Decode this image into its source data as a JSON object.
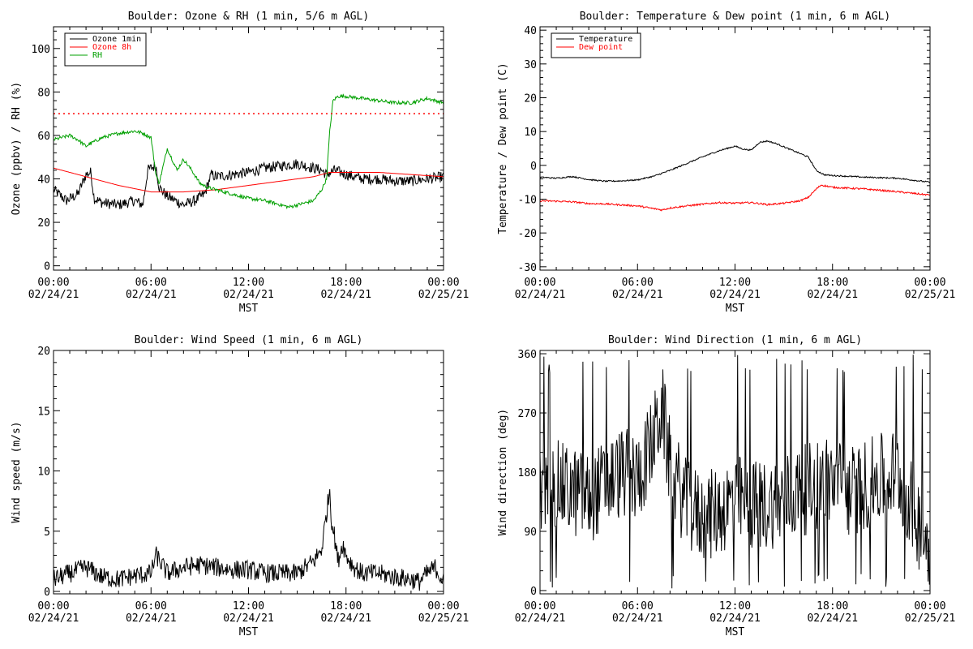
{
  "chart_data": [
    {
      "type": "line",
      "title": "Boulder: Ozone & RH (1 min, 5/6 m AGL)",
      "xlabel": "MST",
      "ylabel": "Ozone (ppbv) / RH (%)",
      "x_tick_labels": [
        [
          "00:00",
          "02/24/21"
        ],
        [
          "06:00",
          "02/24/21"
        ],
        [
          "12:00",
          "02/24/21"
        ],
        [
          "18:00",
          "02/24/21"
        ],
        [
          "00:00",
          "02/25/21"
        ]
      ],
      "xlim_hours": [
        0,
        24
      ],
      "ylim": [
        -2,
        110
      ],
      "yticks": [
        0,
        20,
        40,
        60,
        80,
        100
      ],
      "reference_line": {
        "y": 70,
        "style": "dotted",
        "color": "#ff0000"
      },
      "legend": {
        "placement": "top-left",
        "entries": [
          "Ozone 1min",
          "Ozone 8h",
          "RH"
        ]
      },
      "series": [
        {
          "name": "Ozone 1min",
          "color": "#000000",
          "noise": 2.5,
          "x": [
            0,
            0.8,
            1.5,
            2.0,
            2.3,
            2.5,
            3.0,
            4.0,
            5.0,
            5.5,
            5.8,
            6.0,
            6.3,
            6.5,
            7.0,
            8.0,
            8.7,
            9.3,
            9.7,
            10.0,
            11.0,
            12.0,
            13.0,
            14.0,
            15.0,
            15.5,
            16.0,
            16.5,
            16.8,
            17.3,
            18.0,
            19.0,
            20.0,
            21.0,
            22.0,
            23.0,
            24.0
          ],
          "y": [
            35,
            30,
            33,
            42,
            43,
            31,
            29,
            28,
            30,
            28,
            44,
            45,
            46,
            36,
            32,
            28,
            30,
            33,
            42,
            41,
            42,
            43,
            45,
            46,
            47,
            46,
            45,
            44,
            42,
            44,
            42,
            40,
            40,
            39,
            39,
            40,
            41
          ]
        },
        {
          "name": "Ozone 8h",
          "color": "#ff0000",
          "noise": 0,
          "x": [
            0,
            2,
            4,
            6,
            8,
            10,
            12,
            14,
            16,
            17,
            18,
            20,
            22,
            24
          ],
          "y": [
            45,
            41,
            37,
            34,
            34,
            35,
            37,
            39,
            41,
            43,
            43,
            43,
            42,
            41
          ]
        },
        {
          "name": "RH",
          "color": "#00a000",
          "noise": 0.8,
          "x": [
            0,
            0.5,
            1.0,
            1.5,
            2.0,
            2.2,
            3.0,
            4.0,
            5.0,
            5.5,
            6.0,
            6.3,
            6.5,
            7.0,
            7.3,
            7.6,
            8.0,
            8.5,
            9.0,
            9.5,
            10.0,
            11.0,
            12.0,
            13.0,
            14.0,
            14.5,
            15.0,
            16.0,
            16.5,
            16.8,
            17.0,
            17.2,
            17.5,
            18.0,
            19.0,
            20.0,
            21.0,
            22.0,
            22.5,
            23.0,
            24.0
          ],
          "y": [
            58,
            59,
            60,
            58,
            55,
            56,
            59,
            61,
            62,
            61,
            59,
            42,
            38,
            54,
            49,
            44,
            49,
            44,
            38,
            36,
            35,
            33,
            31,
            30,
            28,
            27,
            28,
            30,
            35,
            40,
            62,
            76,
            78,
            78,
            77,
            76,
            75,
            75,
            76,
            77,
            75
          ]
        }
      ]
    },
    {
      "type": "line",
      "title": "Boulder: Temperature & Dew point (1 min, 6 m AGL)",
      "xlabel": "MST",
      "ylabel": "Temperature / Dew point (C)",
      "x_tick_labels": [
        [
          "00:00",
          "02/24/21"
        ],
        [
          "06:00",
          "02/24/21"
        ],
        [
          "12:00",
          "02/24/21"
        ],
        [
          "18:00",
          "02/24/21"
        ],
        [
          "00:00",
          "02/25/21"
        ]
      ],
      "xlim_hours": [
        0,
        24
      ],
      "ylim": [
        -31,
        41
      ],
      "yticks": [
        -30,
        -20,
        -10,
        0,
        10,
        20,
        30,
        40
      ],
      "legend": {
        "placement": "top-left",
        "entries": [
          "Temperature",
          "Dew point"
        ]
      },
      "series": [
        {
          "name": "Temperature",
          "color": "#000000",
          "noise": 0.2,
          "x": [
            0,
            1,
            2,
            3,
            4,
            5,
            6,
            7,
            8,
            9,
            10,
            11,
            12,
            12.5,
            13,
            13.5,
            14,
            14.5,
            15,
            15.5,
            16,
            16.5,
            17,
            17.5,
            18,
            20,
            22,
            24
          ],
          "y": [
            -3.5,
            -3.8,
            -3.3,
            -4.2,
            -4.7,
            -4.6,
            -4.3,
            -3.2,
            -1.5,
            0.5,
            2.5,
            4.3,
            5.7,
            4.8,
            4.5,
            6.8,
            7.2,
            6.5,
            5.5,
            4.5,
            3.5,
            2.5,
            -1.5,
            -2.8,
            -3.0,
            -3.5,
            -3.8,
            -5.0
          ]
        },
        {
          "name": "Dew point",
          "color": "#ff0000",
          "noise": 0.25,
          "x": [
            0,
            1,
            2,
            3,
            4,
            5,
            6,
            7,
            7.5,
            8,
            9,
            10,
            11,
            12,
            13,
            14,
            15,
            16,
            16.5,
            17,
            17.3,
            18,
            20,
            22,
            24
          ],
          "y": [
            -10.5,
            -10.6,
            -10.8,
            -11.3,
            -11.4,
            -11.7,
            -12.0,
            -12.8,
            -13.2,
            -12.6,
            -12.0,
            -11.5,
            -11.0,
            -11.2,
            -11.0,
            -11.6,
            -11.2,
            -10.5,
            -9.5,
            -7.0,
            -5.8,
            -6.5,
            -7.0,
            -7.8,
            -8.8
          ]
        }
      ]
    },
    {
      "type": "line",
      "title": "Boulder: Wind Speed (1 min, 6 m AGL)",
      "xlabel": "MST",
      "ylabel": "Wind speed (m/s)",
      "x_tick_labels": [
        [
          "00:00",
          "02/24/21"
        ],
        [
          "06:00",
          "02/24/21"
        ],
        [
          "12:00",
          "02/24/21"
        ],
        [
          "18:00",
          "02/24/21"
        ],
        [
          "00:00",
          "02/25/21"
        ]
      ],
      "xlim_hours": [
        0,
        24
      ],
      "ylim": [
        -0.2,
        20
      ],
      "yticks": [
        0,
        5,
        10,
        15,
        20
      ],
      "series": [
        {
          "name": "",
          "color": "#000000",
          "noise": 0.8,
          "x": [
            0,
            1,
            2,
            3,
            4,
            5,
            6,
            6.3,
            6.5,
            7,
            8,
            9,
            10,
            11,
            12,
            13,
            14,
            15,
            15.5,
            16,
            16.5,
            17,
            17.1,
            17.3,
            17.5,
            17.8,
            18,
            18.5,
            19,
            20,
            21,
            22,
            22.5,
            23,
            23.5,
            24
          ],
          "y": [
            1.0,
            1.5,
            2.0,
            1.2,
            1.0,
            1.3,
            1.5,
            3.0,
            2.6,
            1.5,
            2.0,
            2.2,
            2.0,
            1.8,
            1.8,
            1.5,
            1.5,
            1.5,
            2.0,
            2.5,
            3.5,
            8.5,
            6.0,
            4.5,
            2.5,
            4.0,
            3.0,
            2.0,
            1.5,
            1.5,
            1.2,
            1.0,
            0.8,
            1.5,
            2.0,
            0.8
          ]
        }
      ]
    },
    {
      "type": "line",
      "title": "Boulder: Wind Direction (1 min, 6 m AGL)",
      "xlabel": "MST",
      "ylabel": "Wind direction (deg)",
      "x_tick_labels": [
        [
          "00:00",
          "02/24/21"
        ],
        [
          "06:00",
          "02/24/21"
        ],
        [
          "12:00",
          "02/24/21"
        ],
        [
          "18:00",
          "02/24/21"
        ],
        [
          "00:00",
          "02/25/21"
        ]
      ],
      "xlim_hours": [
        0,
        24
      ],
      "ylim": [
        -5,
        365
      ],
      "yticks": [
        0,
        90,
        180,
        270,
        360
      ],
      "series": [
        {
          "name": "",
          "color": "#000000",
          "noise": 70,
          "x": [
            0,
            1,
            2,
            3,
            4,
            5,
            6,
            7,
            7.5,
            8,
            9,
            10,
            11,
            12,
            13,
            14,
            15,
            16,
            17,
            18,
            19,
            20,
            21,
            22,
            23,
            24
          ],
          "y": [
            150,
            160,
            150,
            140,
            160,
            180,
            170,
            230,
            280,
            190,
            130,
            110,
            120,
            140,
            130,
            130,
            140,
            150,
            160,
            170,
            150,
            160,
            170,
            180,
            120,
            60
          ]
        }
      ]
    }
  ]
}
